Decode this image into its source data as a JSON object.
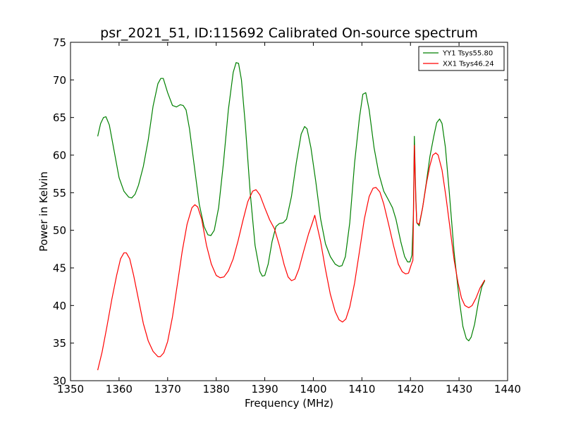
{
  "chart_data": {
    "type": "line",
    "title": "psr_2021_51, ID:115692 Calibrated On-source spectrum",
    "xlabel": "Frequency (MHz)",
    "ylabel": "Power in Kelvin",
    "xlim": [
      1350,
      1440
    ],
    "ylim": [
      30,
      75
    ],
    "xticks": [
      "1350",
      "1360",
      "1370",
      "1380",
      "1390",
      "1400",
      "1410",
      "1420",
      "1430",
      "1440"
    ],
    "yticks": [
      "30",
      "35",
      "40",
      "45",
      "50",
      "55",
      "60",
      "65",
      "70",
      "75"
    ],
    "grid": false,
    "legend_position": "top-right",
    "series": [
      {
        "name": "YY1 Tsys55.80",
        "color": "#008000",
        "points": [
          [
            1355.6,
            62.5
          ],
          [
            1356.2,
            64.2
          ],
          [
            1356.8,
            65.0
          ],
          [
            1357.3,
            65.1
          ],
          [
            1358.0,
            64.0
          ],
          [
            1359.0,
            60.5
          ],
          [
            1360.0,
            57.0
          ],
          [
            1361.0,
            55.2
          ],
          [
            1362.0,
            54.4
          ],
          [
            1362.6,
            54.3
          ],
          [
            1363.3,
            54.8
          ],
          [
            1364.0,
            56.0
          ],
          [
            1365.0,
            58.5
          ],
          [
            1366.0,
            62.0
          ],
          [
            1367.0,
            66.5
          ],
          [
            1368.0,
            69.5
          ],
          [
            1368.6,
            70.2
          ],
          [
            1369.1,
            70.2
          ],
          [
            1370.0,
            68.3
          ],
          [
            1371.0,
            66.6
          ],
          [
            1371.8,
            66.4
          ],
          [
            1372.6,
            66.7
          ],
          [
            1373.2,
            66.6
          ],
          [
            1373.8,
            66.0
          ],
          [
            1374.5,
            63.5
          ],
          [
            1375.5,
            58.5
          ],
          [
            1376.5,
            53.5
          ],
          [
            1377.5,
            50.5
          ],
          [
            1378.3,
            49.4
          ],
          [
            1378.9,
            49.3
          ],
          [
            1379.6,
            50.0
          ],
          [
            1380.5,
            53.0
          ],
          [
            1381.5,
            59.0
          ],
          [
            1382.5,
            66.0
          ],
          [
            1383.5,
            71.0
          ],
          [
            1384.1,
            72.3
          ],
          [
            1384.6,
            72.2
          ],
          [
            1385.2,
            70.0
          ],
          [
            1386.0,
            64.0
          ],
          [
            1387.0,
            55.0
          ],
          [
            1388.0,
            48.0
          ],
          [
            1389.0,
            44.5
          ],
          [
            1389.5,
            43.9
          ],
          [
            1390.0,
            44.0
          ],
          [
            1390.7,
            45.5
          ],
          [
            1391.5,
            48.5
          ],
          [
            1392.3,
            50.5
          ],
          [
            1393.0,
            50.9
          ],
          [
            1393.8,
            51.0
          ],
          [
            1394.5,
            51.5
          ],
          [
            1395.5,
            54.5
          ],
          [
            1396.5,
            59.0
          ],
          [
            1397.5,
            62.8
          ],
          [
            1398.2,
            63.8
          ],
          [
            1398.7,
            63.5
          ],
          [
            1399.5,
            61.0
          ],
          [
            1400.5,
            56.5
          ],
          [
            1401.5,
            51.5
          ],
          [
            1402.5,
            48.2
          ],
          [
            1403.5,
            46.5
          ],
          [
            1404.5,
            45.5
          ],
          [
            1405.3,
            45.2
          ],
          [
            1405.9,
            45.3
          ],
          [
            1406.6,
            46.5
          ],
          [
            1407.5,
            51.0
          ],
          [
            1408.5,
            59.0
          ],
          [
            1409.5,
            65.0
          ],
          [
            1410.2,
            68.1
          ],
          [
            1410.8,
            68.3
          ],
          [
            1411.5,
            66.0
          ],
          [
            1412.5,
            61.0
          ],
          [
            1413.5,
            57.5
          ],
          [
            1414.5,
            55.2
          ],
          [
            1415.5,
            54.0
          ],
          [
            1416.3,
            53.0
          ],
          [
            1417.0,
            51.5
          ],
          [
            1418.0,
            48.5
          ],
          [
            1418.8,
            46.5
          ],
          [
            1419.4,
            45.8
          ],
          [
            1419.9,
            45.8
          ],
          [
            1420.3,
            46.7
          ],
          [
            1420.6,
            52.0
          ],
          [
            1420.8,
            62.5
          ],
          [
            1421.1,
            54.5
          ],
          [
            1421.3,
            51.0
          ],
          [
            1421.8,
            50.6
          ],
          [
            1422.5,
            53.0
          ],
          [
            1423.3,
            56.5
          ],
          [
            1424.0,
            59.8
          ],
          [
            1424.8,
            62.5
          ],
          [
            1425.4,
            64.3
          ],
          [
            1426.0,
            64.8
          ],
          [
            1426.5,
            64.2
          ],
          [
            1427.2,
            61.0
          ],
          [
            1428.0,
            55.0
          ],
          [
            1429.0,
            47.0
          ],
          [
            1430.0,
            41.0
          ],
          [
            1430.8,
            37.2
          ],
          [
            1431.5,
            35.6
          ],
          [
            1432.0,
            35.3
          ],
          [
            1432.5,
            35.8
          ],
          [
            1433.2,
            37.5
          ],
          [
            1434.0,
            40.5
          ],
          [
            1434.7,
            42.5
          ],
          [
            1435.3,
            43.3
          ]
        ]
      },
      {
        "name": "XX1 Tsys46.24",
        "color": "#ff0000",
        "points": [
          [
            1355.6,
            31.4
          ],
          [
            1356.5,
            33.8
          ],
          [
            1357.5,
            37.2
          ],
          [
            1358.5,
            40.8
          ],
          [
            1359.5,
            44.0
          ],
          [
            1360.3,
            46.2
          ],
          [
            1361.0,
            47.0
          ],
          [
            1361.5,
            47.0
          ],
          [
            1362.2,
            46.2
          ],
          [
            1363.0,
            44.0
          ],
          [
            1364.0,
            40.8
          ],
          [
            1365.0,
            37.6
          ],
          [
            1366.0,
            35.3
          ],
          [
            1367.0,
            33.9
          ],
          [
            1368.0,
            33.2
          ],
          [
            1368.5,
            33.2
          ],
          [
            1369.2,
            33.7
          ],
          [
            1370.0,
            35.2
          ],
          [
            1371.0,
            38.5
          ],
          [
            1372.0,
            42.8
          ],
          [
            1373.0,
            47.2
          ],
          [
            1374.0,
            50.8
          ],
          [
            1375.0,
            53.0
          ],
          [
            1375.6,
            53.4
          ],
          [
            1376.2,
            53.1
          ],
          [
            1377.0,
            51.5
          ],
          [
            1378.0,
            48.0
          ],
          [
            1379.0,
            45.5
          ],
          [
            1380.0,
            44.0
          ],
          [
            1380.8,
            43.7
          ],
          [
            1381.6,
            43.8
          ],
          [
            1382.5,
            44.6
          ],
          [
            1383.5,
            46.2
          ],
          [
            1384.5,
            48.6
          ],
          [
            1385.5,
            51.3
          ],
          [
            1386.5,
            53.8
          ],
          [
            1387.5,
            55.2
          ],
          [
            1388.2,
            55.4
          ],
          [
            1389.0,
            54.7
          ],
          [
            1390.0,
            53.0
          ],
          [
            1391.0,
            51.4
          ],
          [
            1392.0,
            50.2
          ],
          [
            1393.0,
            48.0
          ],
          [
            1394.0,
            45.4
          ],
          [
            1394.8,
            43.8
          ],
          [
            1395.5,
            43.3
          ],
          [
            1396.2,
            43.5
          ],
          [
            1397.0,
            44.8
          ],
          [
            1398.0,
            47.2
          ],
          [
            1399.0,
            49.5
          ],
          [
            1399.8,
            51.0
          ],
          [
            1400.3,
            52.0
          ],
          [
            1400.8,
            50.5
          ],
          [
            1401.5,
            48.5
          ],
          [
            1402.5,
            44.8
          ],
          [
            1403.5,
            41.5
          ],
          [
            1404.5,
            39.2
          ],
          [
            1405.3,
            38.1
          ],
          [
            1406.0,
            37.8
          ],
          [
            1406.7,
            38.2
          ],
          [
            1407.5,
            39.8
          ],
          [
            1408.5,
            43.0
          ],
          [
            1409.5,
            47.2
          ],
          [
            1410.5,
            51.5
          ],
          [
            1411.5,
            54.5
          ],
          [
            1412.3,
            55.6
          ],
          [
            1412.9,
            55.7
          ],
          [
            1413.7,
            55.1
          ],
          [
            1414.5,
            53.5
          ],
          [
            1415.5,
            50.8
          ],
          [
            1416.5,
            48.0
          ],
          [
            1417.5,
            45.5
          ],
          [
            1418.3,
            44.5
          ],
          [
            1419.0,
            44.2
          ],
          [
            1419.6,
            44.3
          ],
          [
            1420.2,
            45.5
          ],
          [
            1420.5,
            46.0
          ],
          [
            1420.8,
            61.3
          ],
          [
            1421.1,
            54.0
          ],
          [
            1421.3,
            51.0
          ],
          [
            1421.8,
            50.8
          ],
          [
            1422.5,
            53.0
          ],
          [
            1423.3,
            56.3
          ],
          [
            1424.0,
            58.6
          ],
          [
            1424.6,
            60.0
          ],
          [
            1425.2,
            60.3
          ],
          [
            1425.7,
            60.0
          ],
          [
            1426.5,
            58.0
          ],
          [
            1427.3,
            54.5
          ],
          [
            1428.0,
            51.0
          ],
          [
            1429.0,
            46.0
          ],
          [
            1429.8,
            43.0
          ],
          [
            1430.5,
            41.0
          ],
          [
            1431.2,
            40.0
          ],
          [
            1432.0,
            39.7
          ],
          [
            1432.7,
            40.0
          ],
          [
            1433.5,
            41.0
          ],
          [
            1434.3,
            42.3
          ],
          [
            1435.3,
            43.4
          ]
        ]
      }
    ]
  }
}
